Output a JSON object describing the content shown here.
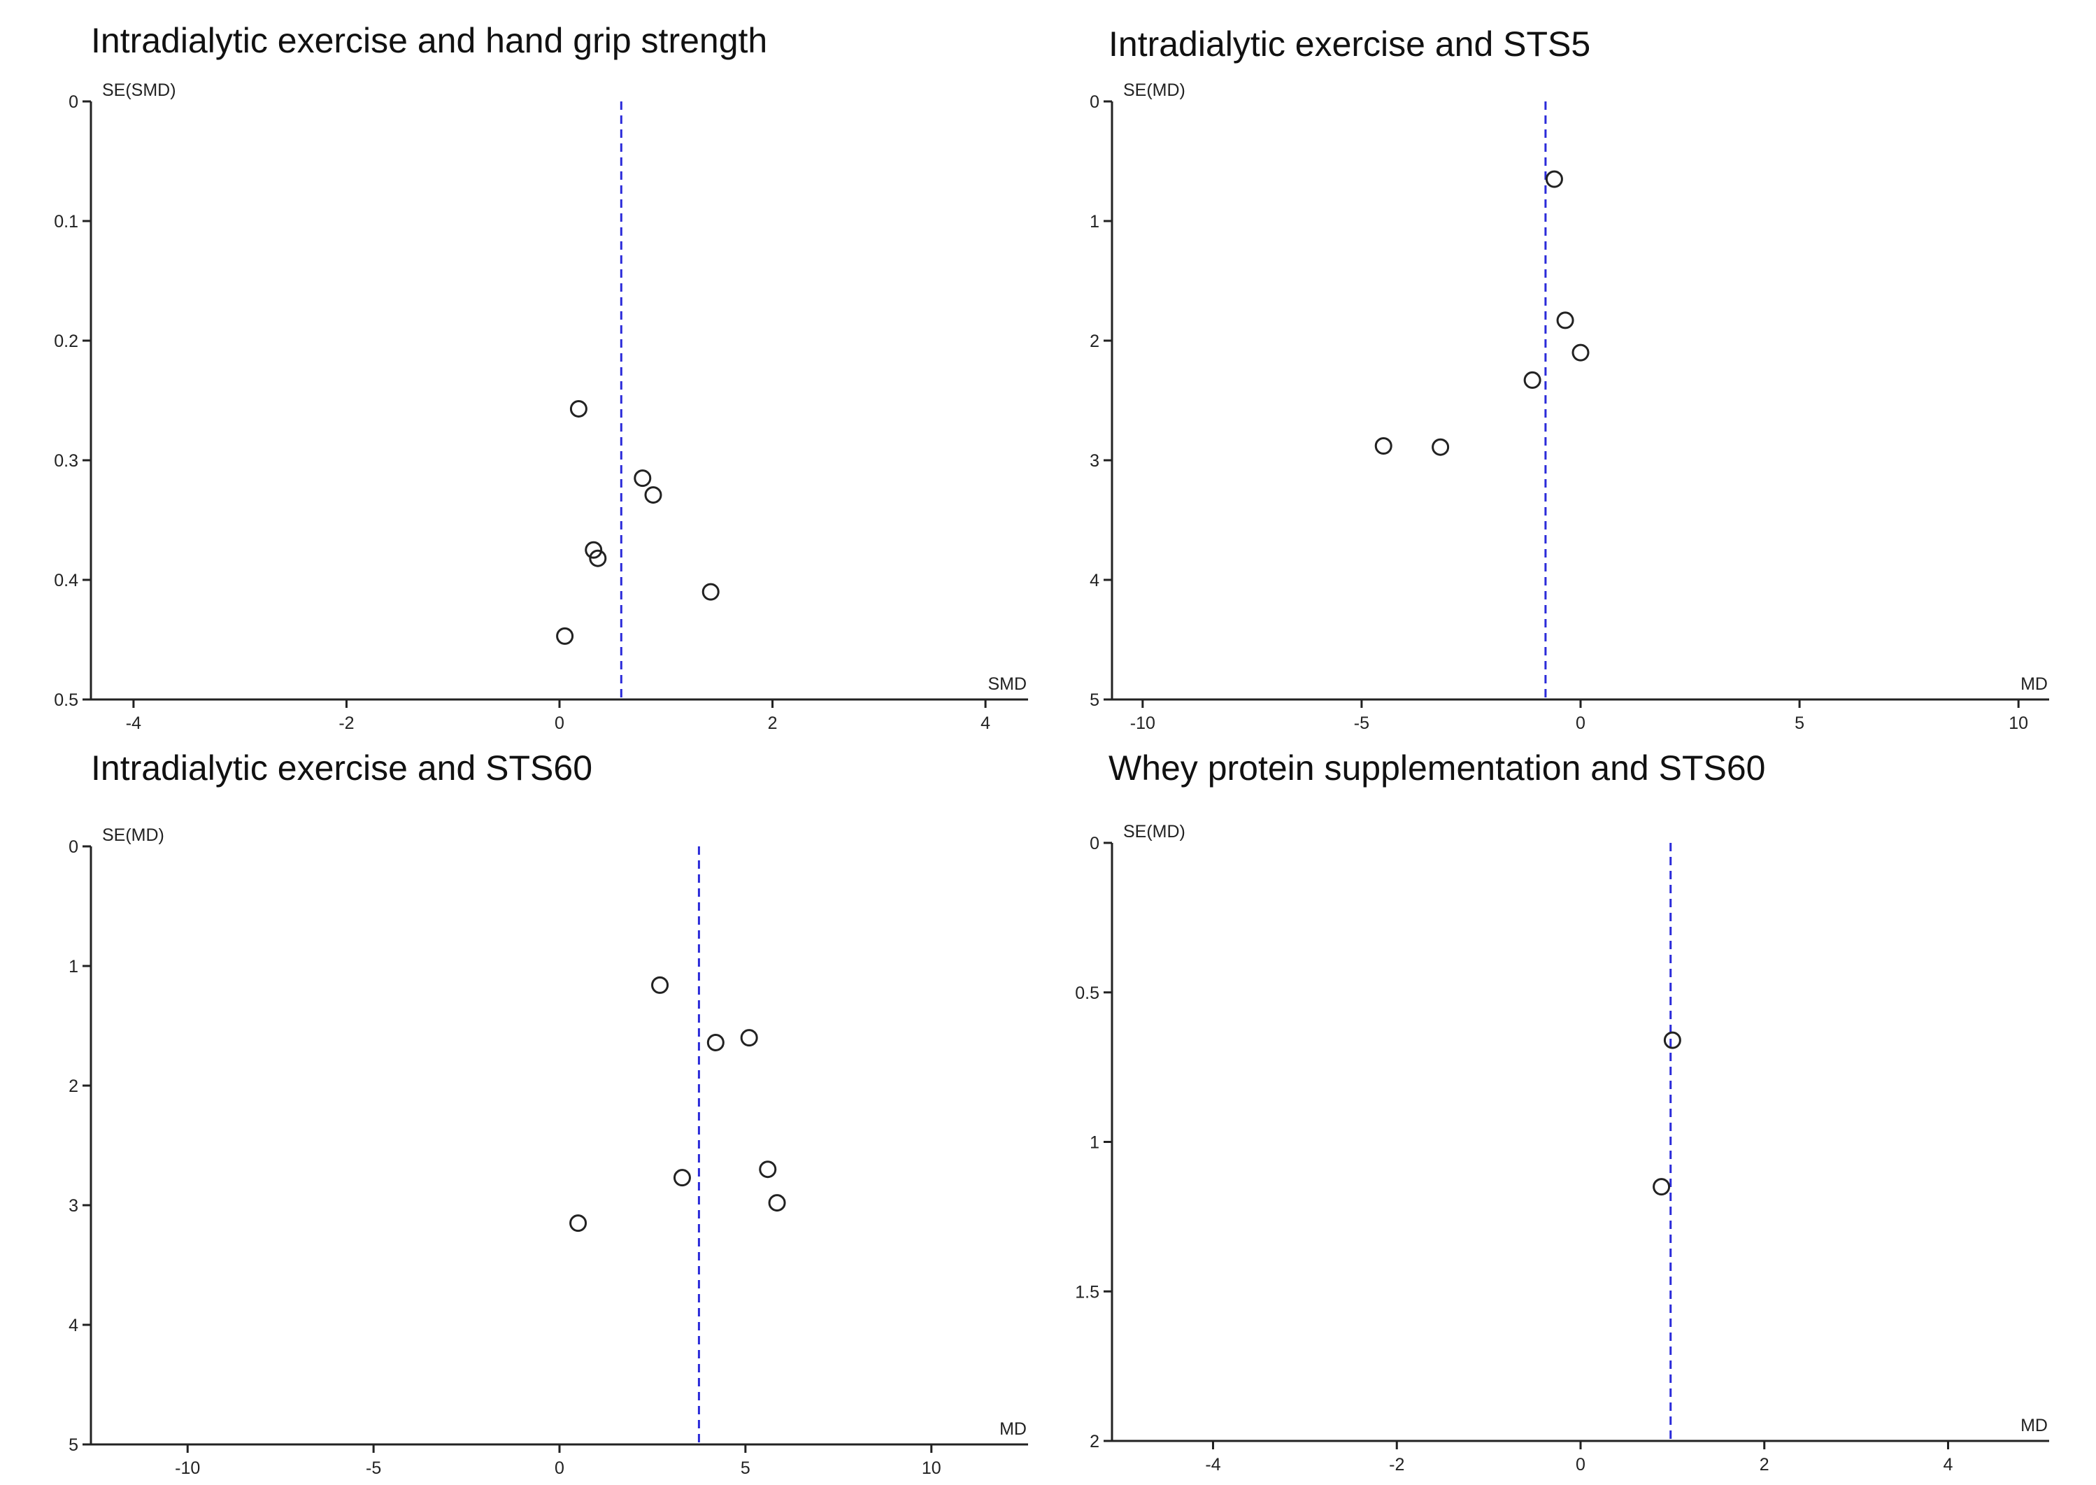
{
  "chart_data": [
    {
      "type": "scatter",
      "subtype": "funnel",
      "title": "Intradialytic exercise and hand grip strength",
      "xlabel": "SMD",
      "ylabel": "SE(SMD)",
      "xlim": [
        -4.4,
        4.4
      ],
      "ylim": [
        0,
        0.5
      ],
      "y_inverted": true,
      "xticks": [
        -4,
        -2,
        0,
        2,
        4
      ],
      "xtick_labels": [
        "-4",
        "-2",
        "0",
        "2",
        "4"
      ],
      "yticks": [
        0,
        0.1,
        0.2,
        0.3,
        0.4,
        0.5
      ],
      "ytick_labels": [
        "0",
        "0.1",
        "0.2",
        "0.3",
        "0.4",
        "0.5"
      ],
      "pooled_estimate": 0.58,
      "points": [
        {
          "x": 0.18,
          "y": 0.257
        },
        {
          "x": 0.78,
          "y": 0.315
        },
        {
          "x": 0.88,
          "y": 0.329
        },
        {
          "x": 0.32,
          "y": 0.375
        },
        {
          "x": 0.36,
          "y": 0.382
        },
        {
          "x": 1.42,
          "y": 0.41
        },
        {
          "x": 0.05,
          "y": 0.447
        }
      ]
    },
    {
      "type": "scatter",
      "subtype": "funnel",
      "title": "Intradialytic exercise and STS5",
      "xlabel": "MD",
      "ylabel": "SE(MD)",
      "xlim": [
        -10.7,
        10.7
      ],
      "ylim": [
        0,
        5
      ],
      "y_inverted": true,
      "xticks": [
        -10,
        -5,
        0,
        5,
        10
      ],
      "xtick_labels": [
        "-10",
        "-5",
        "0",
        "5",
        "10"
      ],
      "yticks": [
        0,
        1,
        2,
        3,
        4,
        5
      ],
      "ytick_labels": [
        "0",
        "1",
        "2",
        "3",
        "4",
        "5"
      ],
      "pooled_estimate": -0.8,
      "points": [
        {
          "x": -0.6,
          "y": 0.65
        },
        {
          "x": -0.35,
          "y": 1.83
        },
        {
          "x": 0.0,
          "y": 2.1
        },
        {
          "x": -1.1,
          "y": 2.33
        },
        {
          "x": -4.5,
          "y": 2.88
        },
        {
          "x": -3.2,
          "y": 2.89
        }
      ]
    },
    {
      "type": "scatter",
      "subtype": "funnel",
      "title": "Intradialytic exercise and STS60",
      "xlabel": "MD",
      "ylabel": "SE(MD)",
      "xlim": [
        -12.6,
        12.6
      ],
      "ylim": [
        0,
        5
      ],
      "y_inverted": true,
      "xticks": [
        -10,
        -5,
        0,
        5,
        10
      ],
      "xtick_labels": [
        "-10",
        "-5",
        "0",
        "5",
        "10"
      ],
      "yticks": [
        0,
        1,
        2,
        3,
        4,
        5
      ],
      "ytick_labels": [
        "0",
        "1",
        "2",
        "3",
        "4",
        "5"
      ],
      "pooled_estimate": 3.75,
      "points": [
        {
          "x": 2.7,
          "y": 1.16
        },
        {
          "x": 5.1,
          "y": 1.6
        },
        {
          "x": 4.2,
          "y": 1.64
        },
        {
          "x": 5.6,
          "y": 2.7
        },
        {
          "x": 3.3,
          "y": 2.77
        },
        {
          "x": 5.85,
          "y": 2.98
        },
        {
          "x": 0.5,
          "y": 3.15
        }
      ]
    },
    {
      "type": "scatter",
      "subtype": "funnel",
      "title": "Whey protein supplementation and STS60",
      "xlabel": "MD",
      "ylabel": "SE(MD)",
      "xlim": [
        -5.1,
        5.1
      ],
      "ylim": [
        0,
        2
      ],
      "y_inverted": true,
      "xticks": [
        -4,
        -2,
        0,
        2,
        4
      ],
      "xtick_labels": [
        "-4",
        "-2",
        "0",
        "2",
        "4"
      ],
      "yticks": [
        0,
        0.5,
        1,
        1.5,
        2
      ],
      "ytick_labels": [
        "0",
        "0.5",
        "1",
        "1.5",
        "2"
      ],
      "pooled_estimate": 0.98,
      "points": [
        {
          "x": 1.0,
          "y": 0.66
        },
        {
          "x": 0.88,
          "y": 1.15
        }
      ]
    }
  ],
  "style": {
    "pooled_line_color": "#2b2bd9",
    "axis_color": "#222222",
    "marker_color": "#222222",
    "title_color": "#111111"
  }
}
